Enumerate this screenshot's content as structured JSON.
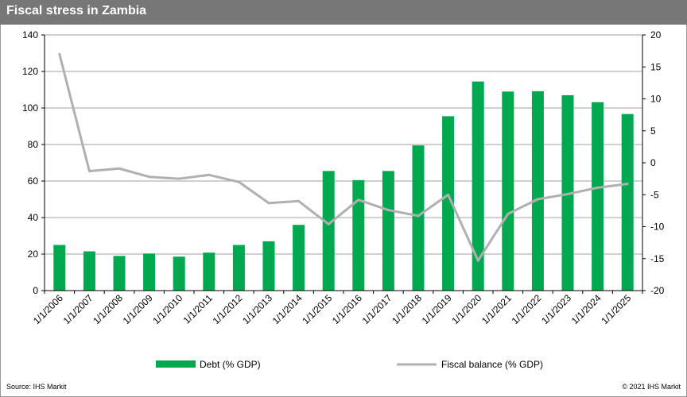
{
  "header": {
    "title": "Fiscal stress in Zambia"
  },
  "footer": {
    "source": "Source: IHS Markit",
    "copyright": "© 2021 IHS Markit"
  },
  "colors": {
    "bar": "#00a94f",
    "line": "#b0b0b0",
    "grid": "#a0a0a0",
    "title_bar": "#777777"
  },
  "chart_data": {
    "type": "bar",
    "title": "Fiscal stress in Zambia",
    "categories": [
      "1/1/2006",
      "1/1/2007",
      "1/1/2008",
      "1/1/2009",
      "1/1/2010",
      "1/1/2011",
      "1/1/2012",
      "1/1/2013",
      "1/1/2014",
      "1/1/2015",
      "1/1/2016",
      "1/1/2017",
      "1/1/2018",
      "1/1/2019",
      "1/1/2020",
      "1/1/2021",
      "1/1/2022",
      "1/1/2023",
      "1/1/2024",
      "1/1/2025"
    ],
    "series": [
      {
        "name": "Debt (% GDP)",
        "type": "bar",
        "axis": "left",
        "values": [
          25,
          21.5,
          19,
          20.3,
          18.6,
          20.8,
          25,
          27,
          36,
          65.5,
          60.5,
          65.5,
          79.5,
          95.5,
          114.5,
          109,
          109.2,
          107,
          103.2,
          96.7
        ]
      },
      {
        "name": "Fiscal balance (% GDP)",
        "type": "line",
        "axis": "right",
        "values": [
          17,
          -1.3,
          -0.9,
          -2.2,
          -2.5,
          -1.9,
          -3,
          -6.3,
          -6,
          -9.6,
          -5.8,
          -7.4,
          -8.3,
          -5,
          -15.3,
          -8,
          -5.7,
          -4.9,
          -3.9,
          -3.3
        ]
      }
    ],
    "y_left": {
      "min": 0,
      "max": 140,
      "step": 20,
      "ticks": [
        "0",
        "20",
        "40",
        "60",
        "80",
        "100",
        "120",
        "140"
      ]
    },
    "y_right": {
      "min": -20,
      "max": 20,
      "step": 5,
      "ticks": [
        "-20",
        "-15",
        "-10",
        "-5",
        "0",
        "5",
        "10",
        "15",
        "20"
      ]
    },
    "grid": true,
    "legend_position": "bottom"
  }
}
